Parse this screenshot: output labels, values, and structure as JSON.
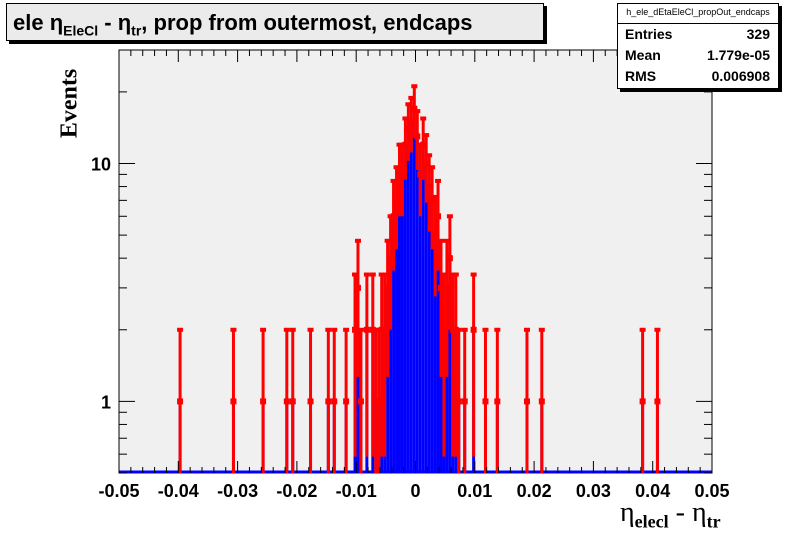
{
  "title": {
    "pre": "ele η",
    "sub1": "EleCl",
    "mid": " - η",
    "sub2": "tr",
    "post": ", prop from outermost, endcaps"
  },
  "stats": {
    "name": "h_ele_dEtaEleCl_propOut_endcaps",
    "entries_label": "Entries",
    "entries_value": "329",
    "mean_label": "Mean",
    "mean_value": "1.779e-05",
    "rms_label": "RMS",
    "rms_value": "0.006908"
  },
  "axes": {
    "ylabel": "Events",
    "xlabel_main": "η",
    "xlabel_sub1": "elecl",
    "xlabel_mid": " - η",
    "xlabel_sub2": "tr"
  },
  "colors": {
    "frame": "#f0f0f0",
    "hist": "#0000ff",
    "points": "#ff0000"
  },
  "chart_data": {
    "type": "bar",
    "xlim": [
      -0.05,
      0.05
    ],
    "ylim": [
      0.5,
      30
    ],
    "yscale": "log",
    "x_ticks": [
      "-0.05",
      "-0.04",
      "-0.03",
      "-0.02",
      "-0.01",
      "0",
      "0.01",
      "0.02",
      "0.03",
      "0.04",
      "0.05"
    ],
    "y_ticks": [
      "1",
      "10"
    ],
    "bin_width": 0.0005,
    "series": [
      {
        "x": [
          -0.0397,
          -0.0307,
          -0.0257,
          -0.0217,
          -0.0207,
          -0.0177,
          -0.0147,
          -0.0137,
          -0.0117,
          -0.0102,
          -0.0097,
          -0.0092,
          -0.0082,
          -0.0072,
          -0.0067,
          -0.0062,
          -0.0057,
          -0.0052,
          -0.0047,
          -0.0042,
          -0.0037,
          -0.0032,
          -0.0027,
          -0.0022,
          -0.0017,
          -0.0012,
          -0.0007,
          -0.0002,
          0.0003,
          0.0008,
          0.0013,
          0.0018,
          0.0023,
          0.0028,
          0.0033,
          0.0038,
          0.0043,
          0.0048,
          0.0053,
          0.0058,
          0.0063,
          0.0068,
          0.0073,
          0.0083,
          0.0098,
          0.0118,
          0.0138,
          0.0188,
          0.0213,
          0.0383,
          0.0408
        ],
        "y": [
          1,
          1,
          1,
          1,
          1,
          1,
          1,
          1,
          1,
          2,
          3,
          1,
          2,
          2,
          1,
          1,
          2,
          2,
          3,
          4,
          6,
          7,
          9,
          9,
          12,
          14,
          15,
          17,
          13,
          9,
          12,
          10,
          8,
          7,
          5,
          6,
          3,
          2,
          3,
          4,
          2,
          2,
          1,
          1,
          2,
          1,
          1,
          1,
          1,
          1,
          1
        ]
      }
    ]
  }
}
